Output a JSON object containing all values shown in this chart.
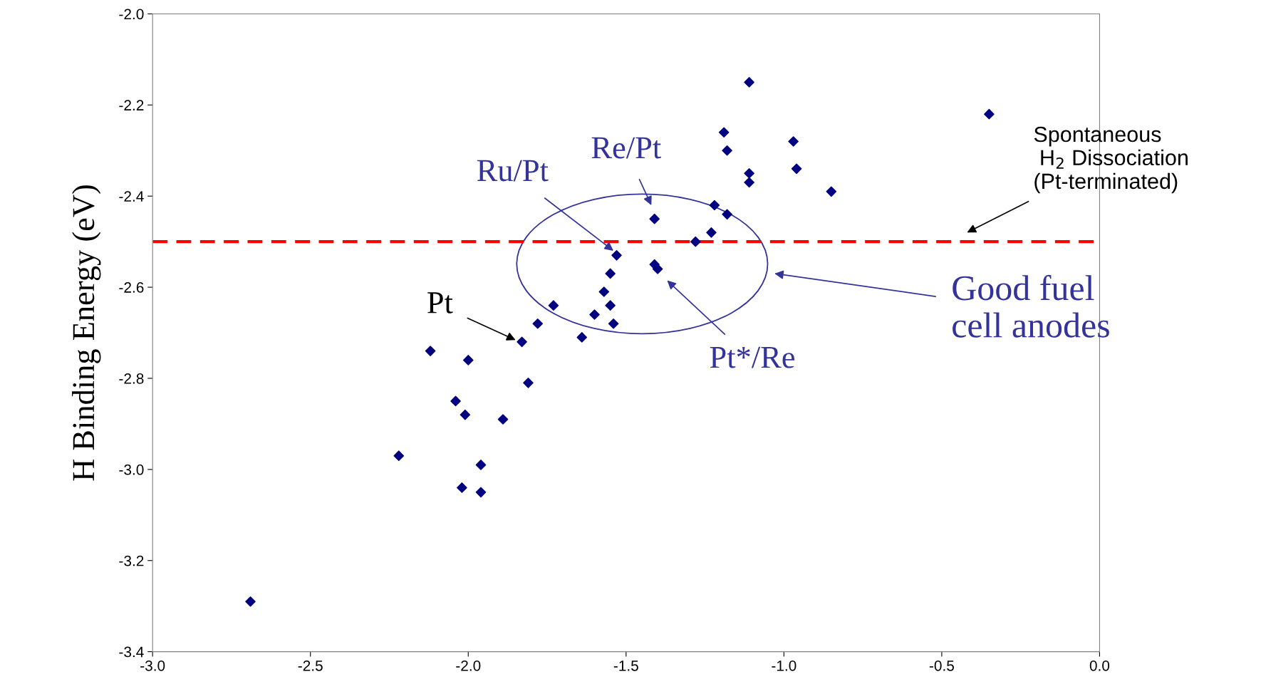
{
  "chart_data": {
    "type": "scatter",
    "ylabel": "H Binding Energy (eV)",
    "x": [
      -2.69,
      -2.22,
      -2.12,
      -2.0,
      -2.04,
      -2.01,
      -2.02,
      -1.96,
      -1.96,
      -1.89,
      -1.83,
      -1.81,
      -1.78,
      -1.73,
      -1.64,
      -1.6,
      -1.57,
      -1.55,
      -1.55,
      -1.54,
      -1.53,
      -1.41,
      -1.41,
      -1.4,
      -1.28,
      -1.23,
      -1.22,
      -1.18,
      -1.19,
      -1.18,
      -1.11,
      -1.11,
      -1.11,
      -0.97,
      -0.96,
      -0.85,
      -0.35
    ],
    "series": [
      {
        "color": "#000080",
        "values": [
          -3.29,
          -2.97,
          -2.74,
          -2.76,
          -2.85,
          -2.88,
          -3.04,
          -2.99,
          -3.05,
          -2.89,
          -2.72,
          -2.81,
          -2.68,
          -2.64,
          -2.71,
          -2.66,
          -2.61,
          -2.64,
          -2.57,
          -2.68,
          -2.53,
          -2.45,
          -2.55,
          -2.56,
          -2.5,
          -2.48,
          -2.42,
          -2.44,
          -2.26,
          -2.3,
          -2.15,
          -2.35,
          -2.37,
          -2.28,
          -2.34,
          -2.39,
          -2.22
        ]
      }
    ],
    "marker": "diamond",
    "xlim": [
      -3.0,
      0.0
    ],
    "xticks": [
      {
        "value": -3.0,
        "label": "-3.0"
      },
      {
        "value": -2.5,
        "label": "-2.5"
      },
      {
        "value": -2.0,
        "label": "-2.0"
      },
      {
        "value": -1.5,
        "label": "-1.5"
      },
      {
        "value": -1.0,
        "label": "-1.0"
      },
      {
        "value": -0.5,
        "label": "-0.5"
      },
      {
        "value": 0.0,
        "label": "0.0"
      }
    ],
    "ylim": [
      -3.4,
      -2.0
    ],
    "yticks": [
      {
        "value": -3.4,
        "label": "-3.4"
      },
      {
        "value": -3.2,
        "label": "-3.2"
      },
      {
        "value": -3.0,
        "label": "-3.0"
      },
      {
        "value": -2.8,
        "label": "-2.8"
      },
      {
        "value": -2.6,
        "label": "-2.6"
      },
      {
        "value": -2.4,
        "label": "-2.4"
      },
      {
        "value": -2.2,
        "label": "-2.2"
      },
      {
        "value": -2.0,
        "label": "-2.0"
      }
    ],
    "grid": false,
    "legend": false,
    "ref_lines": [
      {
        "axis": "y",
        "value": -2.5,
        "color": "#ff0000",
        "line_style": "dashed"
      }
    ],
    "annotations": [
      "Pt",
      "Ru/Pt",
      "Re/Pt",
      "Pt*/Re",
      "Good fuel\ncell anodes",
      "Spontaneous\n H$_{2}$ Dissociation\n(Pt-terminated)"
    ]
  }
}
